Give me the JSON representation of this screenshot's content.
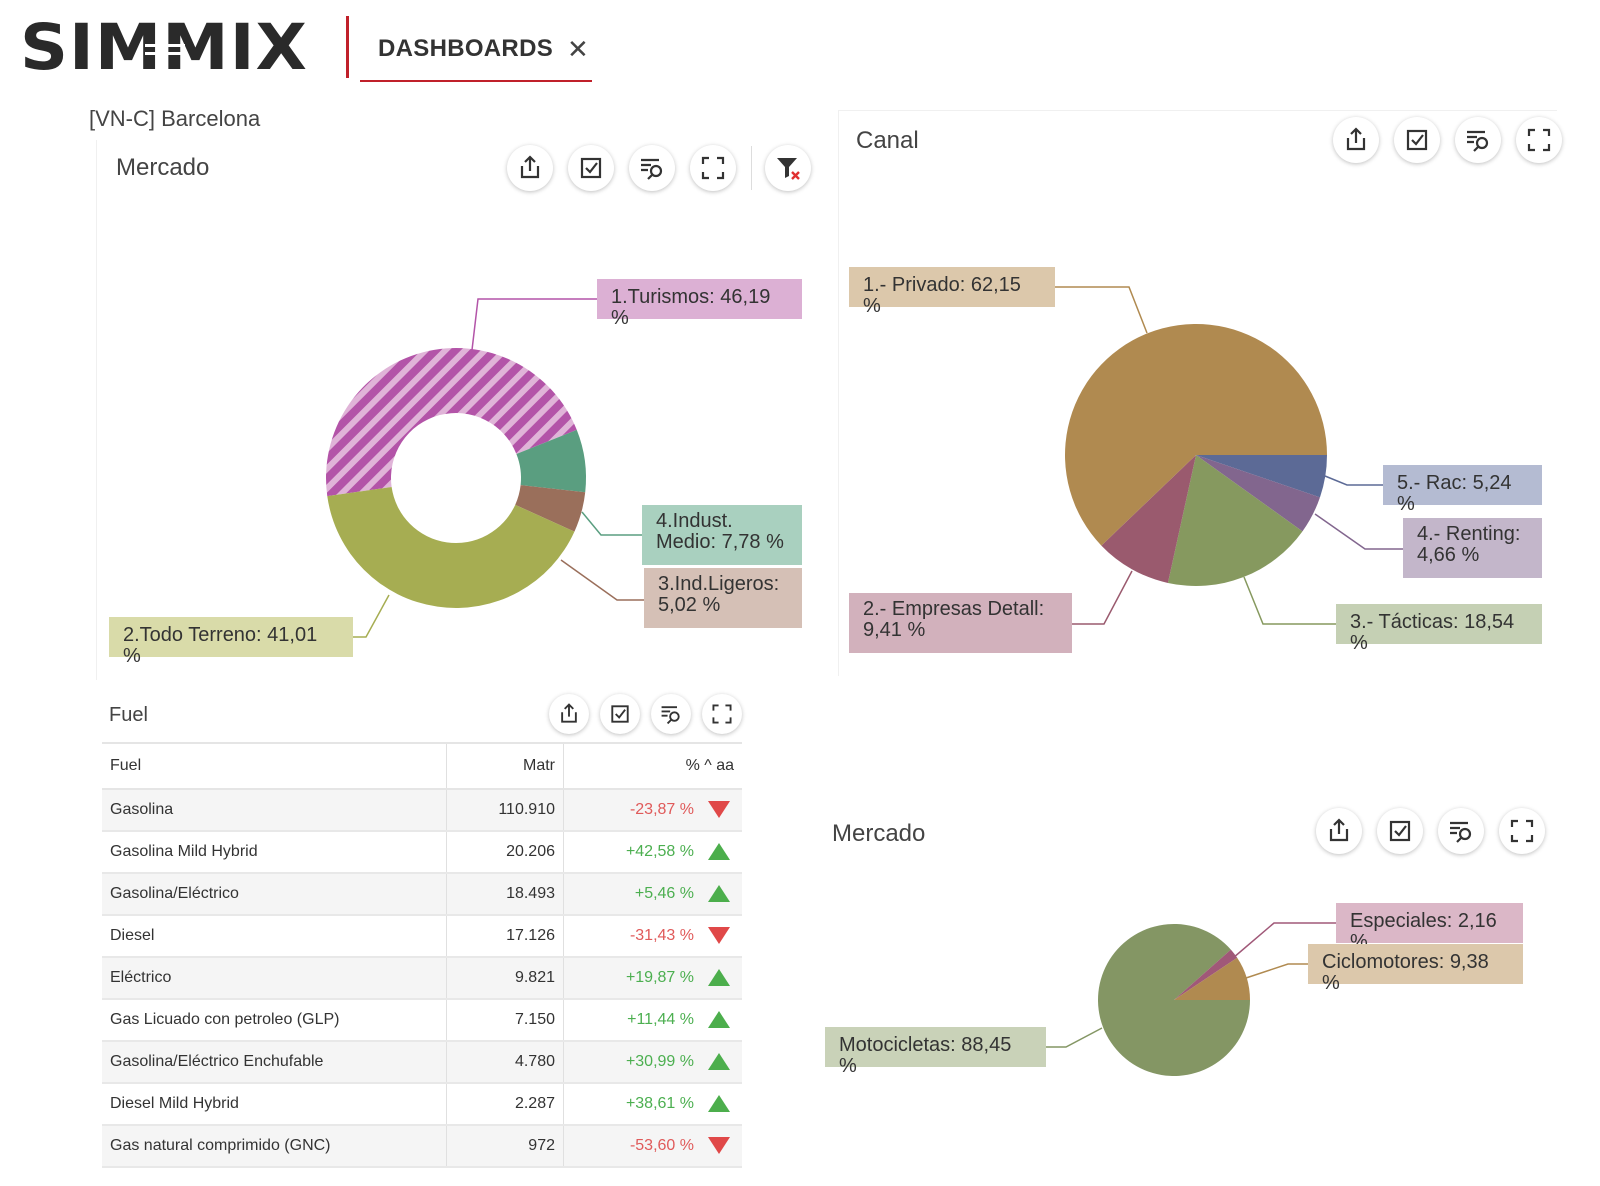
{
  "header": {
    "logo_text": "SIMMIX",
    "tab_label": "DASHBOARDS",
    "tab_close": "✕"
  },
  "breadcrumb": "[VN-C] Barcelona",
  "colors": {
    "brand_red": "#c0202a",
    "turismos": "#b354a8",
    "todo_terreno": "#a6ad52",
    "indust_medio": "#5a9e80",
    "ind_ligeros": "#9a6f5b",
    "privado": "#b08a50",
    "empresas": "#9a5a6e",
    "tacticas": "#86995f",
    "renting": "#82668e",
    "rac": "#5c6a96",
    "motocicletas": "#849664",
    "ciclomotores": "#b08a50",
    "especiales": "#a05878"
  },
  "toolbar_icons": [
    "share-icon",
    "checkbox-icon",
    "filter-search-icon",
    "expand-icon",
    "clear-filter-icon"
  ],
  "panels": {
    "mercado1": {
      "title": "Mercado",
      "labels": {
        "turismos": "1.Turismos: 46,19 %",
        "todo_terreno": "2.Todo Terreno: 41,01 %",
        "indust_medio_1": "4.Indust.",
        "indust_medio_2": "Medio: 7,78 %",
        "ind_ligeros_1": "3.Ind.Ligeros:",
        "ind_ligeros_2": "5,02 %"
      }
    },
    "canal": {
      "title": "Canal",
      "labels": {
        "privado": "1.- Privado: 62,15 %",
        "rac": "5.- Rac: 5,24 %",
        "renting_1": "4.- Renting:",
        "renting_2": "4,66 %",
        "tacticas": "3.- Tácticas: 18,54 %",
        "empresas_1": "2.- Empresas Detall:",
        "empresas_2": "9,41 %"
      }
    },
    "fuel": {
      "title": "Fuel",
      "columns": [
        "Fuel",
        "Matr",
        "% ^ aa"
      ],
      "rows": [
        {
          "fuel": "Gasolina",
          "matr": "110.910",
          "var": "-23,87 %",
          "trend": "down"
        },
        {
          "fuel": "Gasolina Mild Hybrid",
          "matr": "20.206",
          "var": "+42,58 %",
          "trend": "up"
        },
        {
          "fuel": "Gasolina/Eléctrico",
          "matr": "18.493",
          "var": "+5,46 %",
          "trend": "up"
        },
        {
          "fuel": "Diesel",
          "matr": "17.126",
          "var": "-31,43 %",
          "trend": "down"
        },
        {
          "fuel": "Eléctrico",
          "matr": "9.821",
          "var": "+19,87 %",
          "trend": "up"
        },
        {
          "fuel": "Gas Licuado con petroleo (GLP)",
          "matr": "7.150",
          "var": "+11,44 %",
          "trend": "up"
        },
        {
          "fuel": "Gasolina/Eléctrico Enchufable",
          "matr": "4.780",
          "var": "+30,99 %",
          "trend": "up"
        },
        {
          "fuel": "Diesel Mild Hybrid",
          "matr": "2.287",
          "var": "+38,61 %",
          "trend": "up"
        },
        {
          "fuel": "Gas natural comprimido (GNC)",
          "matr": "972",
          "var": "-53,60 %",
          "trend": "down"
        }
      ]
    },
    "mercado2": {
      "title": "Mercado",
      "labels": {
        "especiales": "Especiales: 2,16 %",
        "ciclomotores": "Ciclomotores: 9,38 %",
        "motocicletas": "Motocicletas: 88,45 %"
      }
    }
  },
  "chart_data": [
    {
      "type": "pie",
      "title": "Mercado",
      "donut": true,
      "categories": [
        "1.Turismos",
        "2.Todo Terreno",
        "3.Ind.Ligeros",
        "4.Indust. Medio"
      ],
      "values": [
        46.19,
        41.01,
        5.02,
        7.78
      ]
    },
    {
      "type": "pie",
      "title": "Canal",
      "categories": [
        "1.- Privado",
        "2.- Empresas Detall",
        "3.- Tácticas",
        "4.- Renting",
        "5.- Rac"
      ],
      "values": [
        62.15,
        9.41,
        18.54,
        4.66,
        5.24
      ]
    },
    {
      "type": "pie",
      "title": "Mercado",
      "categories": [
        "Motocicletas",
        "Ciclomotores",
        "Especiales"
      ],
      "values": [
        88.45,
        9.38,
        2.16
      ]
    }
  ]
}
